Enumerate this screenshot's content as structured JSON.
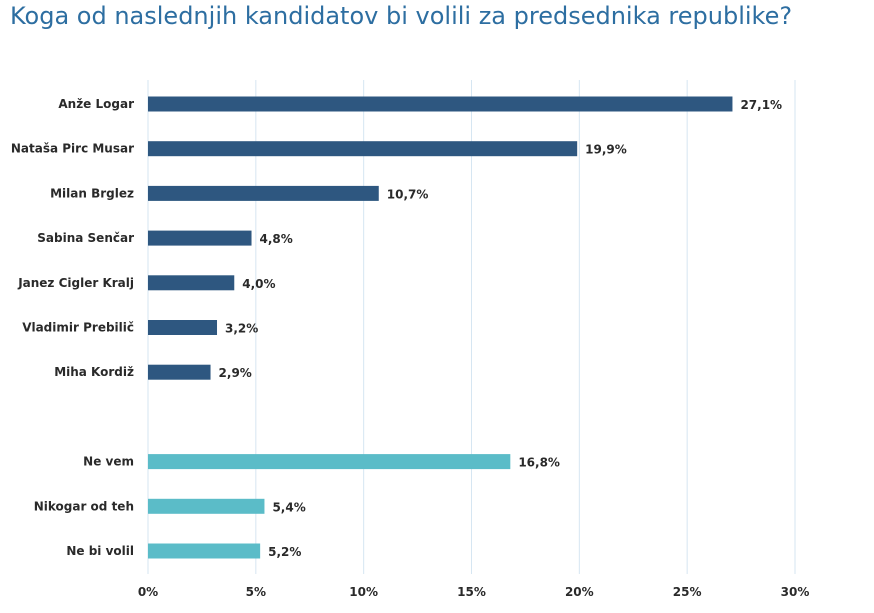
{
  "title": "Koga od naslednjih kandidatov bi volili za predsednika republike?",
  "colors": {
    "candidates": "#2e5780",
    "other": "#5bbcc8",
    "grid": "#d6e6f2",
    "text": "#2a2a2a",
    "title": "#2d6ea1"
  },
  "chart_data": {
    "type": "bar",
    "orientation": "horizontal",
    "title": "Koga od naslednjih kandidatov bi volili za predsednika republike?",
    "categories": [
      "Anže Logar",
      "Nataša Pirc Musar",
      "Milan Brglez",
      "Sabina Senčar",
      "Janez Cigler Kralj",
      "Vladimir Prebilič",
      "Miha Kordiž",
      "",
      "Ne vem",
      "Nikogar od teh",
      "Ne bi volil"
    ],
    "values": [
      27.1,
      19.9,
      10.7,
      4.8,
      4.0,
      3.2,
      2.9,
      null,
      16.8,
      5.4,
      5.2
    ],
    "value_labels": [
      "27,1%",
      "19,9%",
      "10,7%",
      "4,8%",
      "4,0%",
      "3,2%",
      "2,9%",
      "",
      "16,8%",
      "5,4%",
      "5,2%"
    ],
    "groups": [
      "candidates",
      "candidates",
      "candidates",
      "candidates",
      "candidates",
      "candidates",
      "candidates",
      "gap",
      "other",
      "other",
      "other"
    ],
    "xlim": [
      0,
      30
    ],
    "xticks": [
      0,
      5,
      10,
      15,
      20,
      25,
      30
    ],
    "xtick_labels": [
      "0%",
      "5%",
      "10%",
      "15%",
      "20%",
      "25%",
      "30%"
    ],
    "grid": true,
    "xlabel": "",
    "ylabel": ""
  }
}
